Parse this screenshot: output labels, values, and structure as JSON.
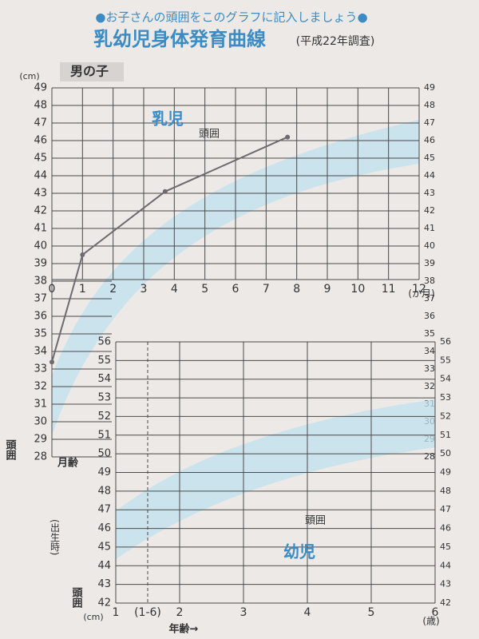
{
  "header": {
    "note": "●お子さんの頭囲をこのグラフに記入しましょう●",
    "title": "乳幼児身体発育曲線",
    "survey": "(平成22年調査)",
    "sex": "男の子"
  },
  "chart_data": [
    {
      "type": "line",
      "section": "乳児",
      "ylabel": "頭囲",
      "xlabel": "月齢",
      "y_unit": "(cm)",
      "x_unit": "(か月)",
      "birth_note": "(出生時)",
      "x": [
        0,
        1,
        3.7,
        7.7
      ],
      "series": [
        {
          "name": "頭囲",
          "color": "#6e6a70",
          "values": [
            33.4,
            39.5,
            43.1,
            46.2
          ]
        }
      ],
      "xlim": [
        0,
        12
      ],
      "xticks": [
        0,
        1,
        2,
        3,
        4,
        5,
        6,
        7,
        8,
        9,
        10,
        11,
        12
      ],
      "ylim": [
        28,
        49
      ],
      "yticks": [
        28,
        29,
        30,
        31,
        32,
        33,
        34,
        35,
        36,
        37,
        38,
        39,
        40,
        41,
        42,
        43,
        44,
        45,
        46,
        47,
        48,
        49
      ],
      "grid": true
    },
    {
      "type": "line",
      "section": "幼児",
      "curve_label": "頭囲",
      "ylabel": "頭囲",
      "xlabel": "年齢→",
      "y_unit": "(cm)",
      "x_unit": "(歳)",
      "x": [],
      "series": [],
      "xlim": [
        1,
        6
      ],
      "xticks": [
        1,
        {
          "value": 1.5,
          "label": "(1-6)"
        },
        2,
        3,
        4,
        5,
        6
      ],
      "ylim": [
        42,
        56
      ],
      "yticks": [
        42,
        43,
        44,
        45,
        46,
        47,
        48,
        49,
        50,
        51,
        52,
        53,
        54,
        55,
        56
      ],
      "grid": true
    }
  ]
}
